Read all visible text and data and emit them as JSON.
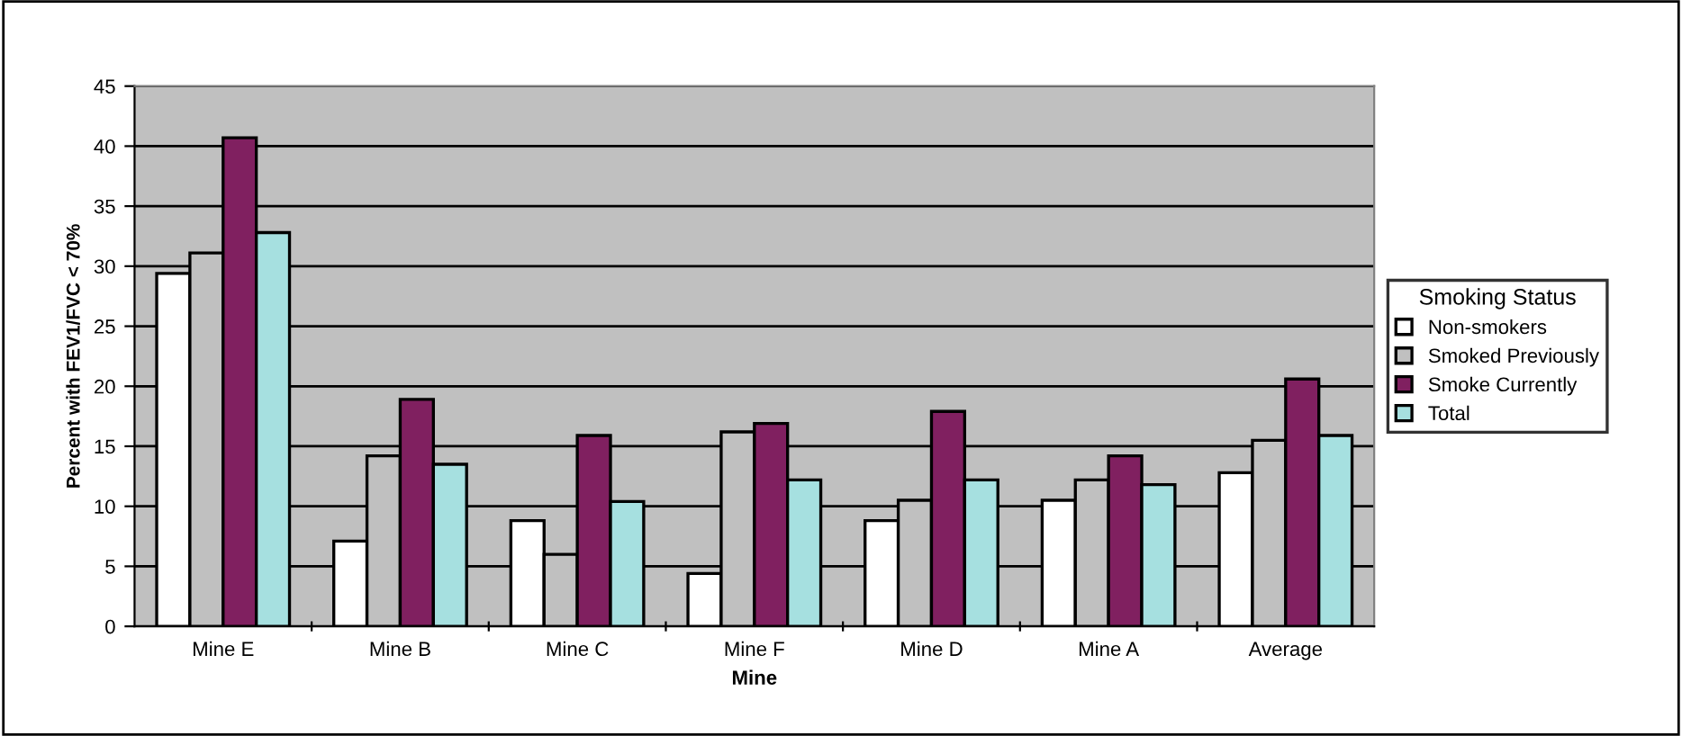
{
  "chart_data": {
    "type": "bar",
    "xlabel": "Mine",
    "ylabel": "Percent with FEV1/FVC < 70%",
    "legend_title": "Smoking Status",
    "categories": [
      "Mine E",
      "Mine B",
      "Mine C",
      "Mine F",
      "Mine D",
      "Mine A",
      "Average"
    ],
    "series": [
      {
        "name": "Non-smokers",
        "color": "#ffffff",
        "values": [
          29.4,
          7.1,
          8.8,
          4.4,
          8.8,
          10.5,
          12.8
        ]
      },
      {
        "name": "Smoked Previously",
        "color": "#c0c0c0",
        "values": [
          31.1,
          14.2,
          6.0,
          16.2,
          10.5,
          12.2,
          15.5
        ]
      },
      {
        "name": "Smoke Currently",
        "color": "#802060",
        "values": [
          40.7,
          18.9,
          15.9,
          16.9,
          17.9,
          14.2,
          20.6
        ]
      },
      {
        "name": "Total",
        "color": "#a6e0e0",
        "values": [
          32.8,
          13.5,
          10.4,
          12.2,
          12.2,
          11.8,
          15.9
        ]
      }
    ],
    "ylim": [
      0,
      45
    ],
    "yticks": [
      0,
      5,
      10,
      15,
      20,
      25,
      30,
      35,
      40,
      45
    ],
    "grid": "y",
    "legend": "right"
  }
}
